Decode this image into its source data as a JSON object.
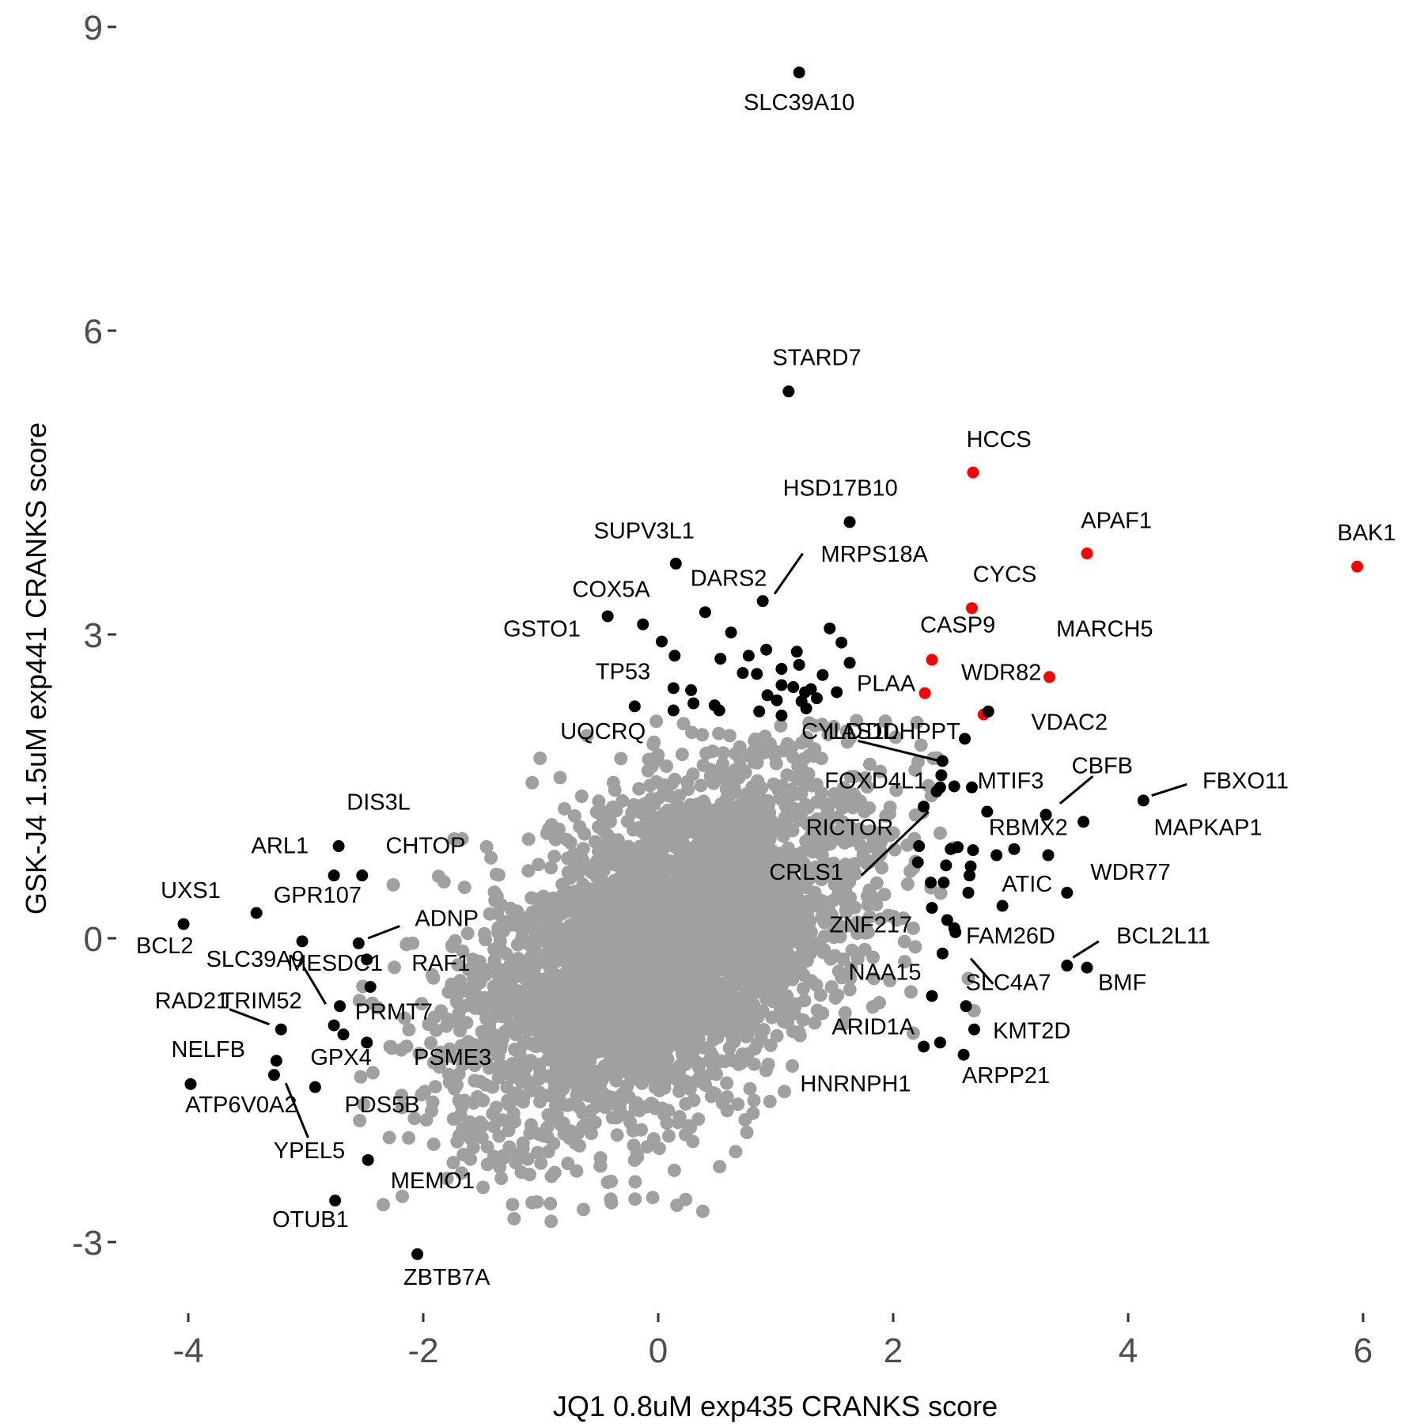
{
  "chart_data": {
    "type": "scatter",
    "title": "",
    "xlabel": "JQ1 0.8uM exp435 CRANKS score",
    "ylabel": "GSK-J4 1.5uM exp441 CRANKS score",
    "xlim": [
      -4.5,
      6.3
    ],
    "ylim": [
      -3.7,
      9.3
    ],
    "x_ticks": [
      -4,
      -2,
      0,
      2,
      4,
      6
    ],
    "x_tick_labels": [
      "-4",
      "-2",
      "0",
      "2",
      "4",
      "6"
    ],
    "y_ticks": [
      -3,
      0,
      3,
      6,
      9
    ],
    "y_tick_labels": [
      "-3",
      "0",
      "3",
      "6",
      "9"
    ],
    "grid": false,
    "legend": "none",
    "colors": {
      "background": "#ffffff",
      "other": "#a0a0a0",
      "hit": "#000000",
      "apoptosis": "#ff0000"
    },
    "series": [
      {
        "color": "#ff0000",
        "points": [
          {
            "x": 5.95,
            "y": 3.67,
            "label": "BAK1"
          },
          {
            "x": 2.68,
            "y": 4.6,
            "label": "HCCS"
          },
          {
            "x": 3.65,
            "y": 3.8,
            "label": "APAF1"
          },
          {
            "x": 2.67,
            "y": 3.26,
            "label": "CYCS"
          },
          {
            "x": 2.33,
            "y": 2.75,
            "label": "CASP9"
          },
          {
            "x": 3.33,
            "y": 2.58,
            "label": "MARCH5"
          },
          {
            "x": 2.27,
            "y": 2.42,
            "label": "PLAA"
          },
          {
            "x": 2.77,
            "y": 2.21,
            "label": ""
          }
        ]
      },
      {
        "color": "#000000",
        "points": [
          {
            "x": 1.2,
            "y": 8.55,
            "label": "SLC39A10"
          },
          {
            "x": 1.11,
            "y": 5.4,
            "label": "STARD7"
          },
          {
            "x": 1.63,
            "y": 4.11,
            "label": "HSD17B10"
          },
          {
            "x": 0.15,
            "y": 3.7,
            "label": "SUPV3L1"
          },
          {
            "x": 0.89,
            "y": 3.33,
            "label": "MRPS18A"
          },
          {
            "x": 0.4,
            "y": 3.22,
            "label": "DARS2"
          },
          {
            "x": -0.43,
            "y": 3.18,
            "label": "COX5A"
          },
          {
            "x": -0.13,
            "y": 3.1,
            "label": "GSTO1"
          },
          {
            "x": 0.62,
            "y": 3.02,
            "label": ""
          },
          {
            "x": 0.03,
            "y": 2.93,
            "label": ""
          },
          {
            "x": 0.14,
            "y": 2.79,
            "label": ""
          },
          {
            "x": 0.13,
            "y": 2.47,
            "label": "TP53"
          },
          {
            "x": 0.13,
            "y": 2.25,
            "label": ""
          },
          {
            "x": -0.2,
            "y": 2.29,
            "label": "UQCRQ"
          },
          {
            "x": 1.46,
            "y": 3.06,
            "label": ""
          },
          {
            "x": 1.56,
            "y": 2.92,
            "label": ""
          },
          {
            "x": 1.63,
            "y": 2.72,
            "label": ""
          },
          {
            "x": 1.18,
            "y": 2.83,
            "label": ""
          },
          {
            "x": 0.92,
            "y": 2.85,
            "label": ""
          },
          {
            "x": 0.77,
            "y": 2.79,
            "label": ""
          },
          {
            "x": 0.53,
            "y": 2.76,
            "label": ""
          },
          {
            "x": 0.72,
            "y": 2.62,
            "label": ""
          },
          {
            "x": 0.84,
            "y": 2.61,
            "label": ""
          },
          {
            "x": 1.05,
            "y": 2.66,
            "label": ""
          },
          {
            "x": 1.2,
            "y": 2.7,
            "label": ""
          },
          {
            "x": 1.4,
            "y": 2.6,
            "label": ""
          },
          {
            "x": 1.05,
            "y": 2.5,
            "label": ""
          },
          {
            "x": 1.15,
            "y": 2.48,
            "label": ""
          },
          {
            "x": 1.25,
            "y": 2.43,
            "label": ""
          },
          {
            "x": 1.3,
            "y": 2.46,
            "label": ""
          },
          {
            "x": 1.52,
            "y": 2.43,
            "label": ""
          },
          {
            "x": 0.28,
            "y": 2.45,
            "label": ""
          },
          {
            "x": 0.3,
            "y": 2.32,
            "label": ""
          },
          {
            "x": 0.48,
            "y": 2.3,
            "label": ""
          },
          {
            "x": 0.52,
            "y": 2.25,
            "label": ""
          },
          {
            "x": 0.93,
            "y": 2.4,
            "label": ""
          },
          {
            "x": 1.01,
            "y": 2.35,
            "label": ""
          },
          {
            "x": 1.22,
            "y": 2.34,
            "label": ""
          },
          {
            "x": 1.35,
            "y": 2.37,
            "label": ""
          },
          {
            "x": 1.05,
            "y": 2.2,
            "label": ""
          },
          {
            "x": 1.26,
            "y": 2.27,
            "label": ""
          },
          {
            "x": 0.86,
            "y": 2.24,
            "label": ""
          },
          {
            "x": 2.81,
            "y": 2.24,
            "label": ""
          },
          {
            "x": 2.61,
            "y": 1.97,
            "label": "DDHPPT"
          },
          {
            "x": 2.42,
            "y": 1.75,
            "label": "LAS1L"
          },
          {
            "x": 2.41,
            "y": 1.61,
            "label": "CYLD"
          },
          {
            "x": 2.52,
            "y": 1.5,
            "label": ""
          },
          {
            "x": 2.4,
            "y": 1.49,
            "label": ""
          },
          {
            "x": 2.67,
            "y": 1.49,
            "label": "MTIF3"
          },
          {
            "x": 2.37,
            "y": 1.45,
            "label": "FOXD4L1"
          },
          {
            "x": 2.26,
            "y": 1.3,
            "label": "CRLS1"
          },
          {
            "x": 2.8,
            "y": 1.25,
            "label": "RICTOR"
          },
          {
            "x": 3.3,
            "y": 1.22,
            "label": "CBFB"
          },
          {
            "x": 3.62,
            "y": 1.15,
            "label": "RBMX2"
          },
          {
            "x": 4.13,
            "y": 1.36,
            "label": "FBXO11"
          },
          {
            "x": 2.22,
            "y": 0.91,
            "label": ""
          },
          {
            "x": 2.55,
            "y": 0.9,
            "label": ""
          },
          {
            "x": 2.49,
            "y": 0.88,
            "label": ""
          },
          {
            "x": 2.68,
            "y": 0.87,
            "label": ""
          },
          {
            "x": 3.03,
            "y": 0.88,
            "label": ""
          },
          {
            "x": 2.88,
            "y": 0.82,
            "label": ""
          },
          {
            "x": 3.32,
            "y": 0.82,
            "label": "MAPKAP1"
          },
          {
            "x": 2.21,
            "y": 0.75,
            "label": ""
          },
          {
            "x": 2.45,
            "y": 0.72,
            "label": ""
          },
          {
            "x": 2.66,
            "y": 0.71,
            "label": ""
          },
          {
            "x": 2.65,
            "y": 0.62,
            "label": ""
          },
          {
            "x": 2.32,
            "y": 0.55,
            "label": ""
          },
          {
            "x": 2.43,
            "y": 0.55,
            "label": ""
          },
          {
            "x": 2.64,
            "y": 0.45,
            "label": "ATIC"
          },
          {
            "x": 3.48,
            "y": 0.45,
            "label": "WDR77"
          },
          {
            "x": 2.93,
            "y": 0.32,
            "label": ""
          },
          {
            "x": 2.33,
            "y": 0.3,
            "label": ""
          },
          {
            "x": 2.46,
            "y": 0.18,
            "label": ""
          },
          {
            "x": 2.52,
            "y": 0.1,
            "label": "ZNF217"
          },
          {
            "x": 2.53,
            "y": 0.06,
            "label": "FAM26D"
          },
          {
            "x": 2.42,
            "y": -0.15,
            "label": "NAA15"
          },
          {
            "x": 3.48,
            "y": -0.27,
            "label": "BCL2L11"
          },
          {
            "x": 3.65,
            "y": -0.29,
            "label": "BMF"
          },
          {
            "x": 2.33,
            "y": -0.57,
            "label": "SLC4A7"
          },
          {
            "x": 2.62,
            "y": -0.67,
            "label": "ARID1A"
          },
          {
            "x": 2.69,
            "y": -0.9,
            "label": "KMT2D"
          },
          {
            "x": 2.26,
            "y": -1.07,
            "label": "HNRNPH1"
          },
          {
            "x": 2.4,
            "y": -1.03,
            "label": ""
          },
          {
            "x": 2.6,
            "y": -1.15,
            "label": "ARPP21"
          },
          {
            "x": -2.72,
            "y": 0.91,
            "label": "DIS3L"
          },
          {
            "x": -2.76,
            "y": 0.62,
            "label": "ARL1"
          },
          {
            "x": -2.52,
            "y": 0.62,
            "label": "CHTOP"
          },
          {
            "x": -4.04,
            "y": 0.14,
            "label": "UXS1"
          },
          {
            "x": -3.42,
            "y": 0.25,
            "label": "GPR107"
          },
          {
            "x": -2.55,
            "y": -0.05,
            "label": "ADNP"
          },
          {
            "x": -3.03,
            "y": -0.03,
            "label": "BCL2"
          },
          {
            "x": -2.48,
            "y": -0.21,
            "label": "MESDC1"
          },
          {
            "x": -2.45,
            "y": -0.48,
            "label": "RAF1"
          },
          {
            "x": -2.71,
            "y": -0.67,
            "label": "SLC39A9"
          },
          {
            "x": -2.76,
            "y": -0.86,
            "label": "PRMT7"
          },
          {
            "x": -2.68,
            "y": -0.95,
            "label": "TRIM52"
          },
          {
            "x": -3.21,
            "y": -0.9,
            "label": "RAD21"
          },
          {
            "x": -2.48,
            "y": -1.03,
            "label": "PSME3"
          },
          {
            "x": -3.25,
            "y": -1.21,
            "label": "GPX4"
          },
          {
            "x": -3.27,
            "y": -1.35,
            "label": "NELFB"
          },
          {
            "x": -3.98,
            "y": -1.44,
            "label": "ATP6V0A2"
          },
          {
            "x": -2.92,
            "y": -1.47,
            "label": "PDS5B"
          },
          {
            "x": -2.47,
            "y": -2.19,
            "label": "YPEL5"
          },
          {
            "x": -2.75,
            "y": -2.59,
            "label": "OTUB1"
          },
          {
            "x": -2.05,
            "y": -3.12,
            "label": "ZBTB7A"
          }
        ]
      }
    ],
    "labels": [
      {
        "text": "SLC39A10",
        "x": 1.2,
        "y": 8.18
      },
      {
        "text": "STARD7",
        "x": 1.35,
        "y": 5.66
      },
      {
        "text": "HCCS",
        "x": 2.9,
        "y": 4.85
      },
      {
        "text": "HSD17B10",
        "x": 1.55,
        "y": 4.37
      },
      {
        "text": "APAF1",
        "x": 3.9,
        "y": 4.05
      },
      {
        "text": "BAK1",
        "x": 6.03,
        "y": 3.93
      },
      {
        "text": "SUPV3L1",
        "x": -0.12,
        "y": 3.95
      },
      {
        "text": "MRPS18A",
        "x": 1.84,
        "y": 3.72
      },
      {
        "text": "DARS2",
        "x": 0.6,
        "y": 3.48
      },
      {
        "text": "CYCS",
        "x": 2.95,
        "y": 3.52
      },
      {
        "text": "COX5A",
        "x": -0.4,
        "y": 3.37
      },
      {
        "text": "CASP9",
        "x": 2.55,
        "y": 3.02
      },
      {
        "text": "MARCH5",
        "x": 3.8,
        "y": 2.98
      },
      {
        "text": "GSTO1",
        "x": -0.99,
        "y": 2.98
      },
      {
        "text": "WDR82",
        "x": 2.92,
        "y": 2.55
      },
      {
        "text": "TP53",
        "x": -0.3,
        "y": 2.56
      },
      {
        "text": "PLAA",
        "x": 1.94,
        "y": 2.44
      },
      {
        "text": "VDAC2",
        "x": 3.5,
        "y": 2.06
      },
      {
        "text": "UQCRQ",
        "x": -0.47,
        "y": 1.97
      },
      {
        "text": "CYLD",
        "x": 1.48,
        "y": 1.97
      },
      {
        "text": "LAS1L",
        "x": 1.74,
        "y": 1.97
      },
      {
        "text": "DDHPPT",
        "x": 2.17,
        "y": 1.97
      },
      {
        "text": "FOXD4L1",
        "x": 1.85,
        "y": 1.48
      },
      {
        "text": "MTIF3",
        "x": 3.0,
        "y": 1.48
      },
      {
        "text": "CBFB",
        "x": 3.78,
        "y": 1.63
      },
      {
        "text": "FBXO11",
        "x": 5.0,
        "y": 1.48
      },
      {
        "text": "RICTOR",
        "x": 1.63,
        "y": 1.02
      },
      {
        "text": "RBMX2",
        "x": 3.15,
        "y": 1.02
      },
      {
        "text": "MAPKAP1",
        "x": 4.68,
        "y": 1.02
      },
      {
        "text": "CRLS1",
        "x": 1.26,
        "y": 0.58
      },
      {
        "text": "WDR77",
        "x": 4.02,
        "y": 0.58
      },
      {
        "text": "ATIC",
        "x": 3.14,
        "y": 0.46
      },
      {
        "text": "ZNF217",
        "x": 1.81,
        "y": 0.06
      },
      {
        "text": "FAM26D",
        "x": 3.0,
        "y": -0.05
      },
      {
        "text": "BCL2L11",
        "x": 4.3,
        "y": -0.05
      },
      {
        "text": "NAA15",
        "x": 1.93,
        "y": -0.41
      },
      {
        "text": "SLC4A7",
        "x": 2.98,
        "y": -0.51
      },
      {
        "text": "BMF",
        "x": 3.95,
        "y": -0.51
      },
      {
        "text": "ARID1A",
        "x": 1.83,
        "y": -0.95
      },
      {
        "text": "KMT2D",
        "x": 3.18,
        "y": -0.99
      },
      {
        "text": "HNRNPH1",
        "x": 1.68,
        "y": -1.51
      },
      {
        "text": "ARPP21",
        "x": 2.96,
        "y": -1.43
      },
      {
        "text": "DIS3L",
        "x": -2.38,
        "y": 1.27
      },
      {
        "text": "ARL1",
        "x": -3.22,
        "y": 0.84
      },
      {
        "text": "CHTOP",
        "x": -1.98,
        "y": 0.84
      },
      {
        "text": "UXS1",
        "x": -3.98,
        "y": 0.4
      },
      {
        "text": "GPR107",
        "x": -2.9,
        "y": 0.35
      },
      {
        "text": "ADNP",
        "x": -1.8,
        "y": 0.12
      },
      {
        "text": "BCL2",
        "x": -4.2,
        "y": -0.15
      },
      {
        "text": "SLC39A9",
        "x": -3.43,
        "y": -0.28
      },
      {
        "text": "MESDC1",
        "x": -2.75,
        "y": -0.32
      },
      {
        "text": "RAF1",
        "x": -1.85,
        "y": -0.32
      },
      {
        "text": "RAD21",
        "x": -3.97,
        "y": -0.69
      },
      {
        "text": "TRIM52",
        "x": -3.38,
        "y": -0.69
      },
      {
        "text": "PRMT7",
        "x": -2.25,
        "y": -0.8
      },
      {
        "text": "NELFB",
        "x": -3.83,
        "y": -1.17
      },
      {
        "text": "GPX4",
        "x": -2.7,
        "y": -1.25
      },
      {
        "text": "PSME3",
        "x": -1.75,
        "y": -1.25
      },
      {
        "text": "ATP6V0A2",
        "x": -3.55,
        "y": -1.72
      },
      {
        "text": "PDS5B",
        "x": -2.35,
        "y": -1.72
      },
      {
        "text": "YPEL5",
        "x": -2.97,
        "y": -2.17
      },
      {
        "text": "MEMO1",
        "x": -1.92,
        "y": -2.47
      },
      {
        "text": "OTUB1",
        "x": -2.96,
        "y": -2.85
      },
      {
        "text": "ZBTB7A",
        "x": -1.8,
        "y": -3.42
      }
    ],
    "leader_lines": [
      {
        "x1": 0.99,
        "y1": 3.4,
        "x2": 1.23,
        "y2": 3.8
      },
      {
        "x1": 1.7,
        "y1": 1.95,
        "x2": 2.4,
        "y2": 1.75
      },
      {
        "x1": 1.73,
        "y1": 0.62,
        "x2": 2.3,
        "y2": 1.25
      },
      {
        "x1": 2.66,
        "y1": -0.2,
        "x2": 2.85,
        "y2": -0.45
      },
      {
        "x1": 3.42,
        "y1": 1.33,
        "x2": 3.7,
        "y2": 1.6
      },
      {
        "x1": 4.2,
        "y1": 1.41,
        "x2": 4.5,
        "y2": 1.52
      },
      {
        "x1": 3.53,
        "y1": -0.19,
        "x2": 3.75,
        "y2": -0.03
      },
      {
        "x1": -2.47,
        "y1": 0.0,
        "x2": -2.2,
        "y2": 0.12
      },
      {
        "x1": -3.02,
        "y1": -0.28,
        "x2": -2.83,
        "y2": -0.65
      },
      {
        "x1": -3.65,
        "y1": -0.7,
        "x2": -3.31,
        "y2": -0.85
      },
      {
        "x1": -3.17,
        "y1": -1.43,
        "x2": -2.98,
        "y2": -1.97
      }
    ],
    "background_cloud": "dense gray points centered near (0,0), spanning roughly x -2.5 to 2.7 and y -2.8 to 2.2"
  }
}
